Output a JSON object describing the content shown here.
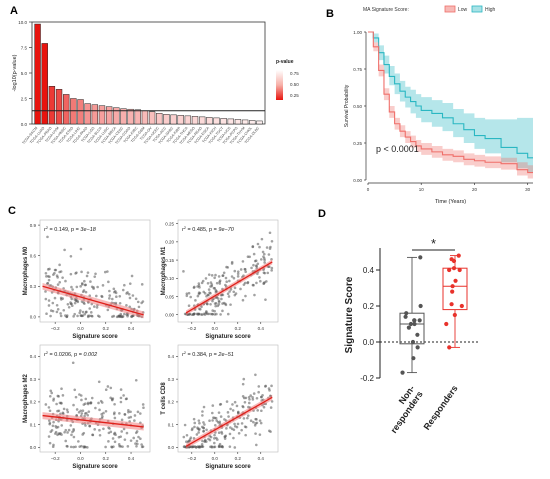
{
  "panels": {
    "A": "A",
    "B": "B",
    "C": "C",
    "D": "D"
  },
  "chart_data": [
    {
      "id": "A",
      "type": "bar",
      "ylabel": "-log10(p-value)",
      "ylim": [
        0,
        10
      ],
      "yticks": [
        0.0,
        2.5,
        5.0,
        7.5,
        10.0
      ],
      "ytick_labels": [
        "0.0",
        "2.5",
        "5.0",
        "7.5",
        "10.0"
      ],
      "threshold": 1.3,
      "categories": [
        "TCGA-SKCM",
        "TCGA-LUAD",
        "TCGA-PRAD",
        "TCGA-UVM",
        "TCGA-HNSC",
        "TCGA-STAD",
        "TCGA-LIHC",
        "TCGA-PAAD",
        "TCGA-LGG",
        "TCGA-BLCA",
        "TCGA-LUSC",
        "TCGA-BRCA",
        "TCGA-CESC",
        "TCGA-COAD",
        "TCGA-KIRC",
        "TCGA-GBM",
        "TCGA-OV",
        "TCGA-UCEC",
        "TCGA-ACC",
        "TCGA-SARC",
        "TCGA-KIRP",
        "TCGA-THCA",
        "TCGA-MESO",
        "TCGA-READ",
        "TCGA-ESCA",
        "TCGA-KICH",
        "TCGA-TGCT",
        "TCGA-UCS",
        "TCGA-PCPG",
        "TCGA-THYM",
        "TCGA-CHOL",
        "TCGA-DLBC"
      ],
      "values": [
        9.8,
        7.9,
        3.7,
        3.4,
        2.9,
        2.5,
        2.4,
        2.0,
        1.9,
        1.8,
        1.7,
        1.6,
        1.5,
        1.45,
        1.4,
        1.3,
        1.2,
        1.05,
        0.95,
        0.9,
        0.85,
        0.8,
        0.75,
        0.7,
        0.65,
        0.6,
        0.55,
        0.5,
        0.45,
        0.4,
        0.35,
        0.3
      ],
      "legend": {
        "title": "p-value",
        "labels": [
          "0.75",
          "0.50",
          "0.25"
        ],
        "colors": [
          "#ffffff",
          "#f7b0a8",
          "#e8140e"
        ]
      }
    },
    {
      "id": "B",
      "type": "line",
      "legend_title": "MA Signature Score:",
      "series_names": [
        "Low",
        "High"
      ],
      "colors": {
        "Low": "#ef6f6a",
        "High": "#2ab7c2"
      },
      "xlabel": "Time (Years)",
      "ylabel": "Survival Probability",
      "xlim": [
        0,
        31
      ],
      "ylim": [
        0,
        1
      ],
      "xticks": [
        0,
        10,
        20,
        30
      ],
      "xtick_labels": [
        "0",
        "10",
        "20",
        "30"
      ],
      "yticks": [
        0,
        0.25,
        0.5,
        0.75,
        1
      ],
      "ytick_labels": [
        "0.00",
        "0.25",
        "0.50",
        "0.75",
        "1.00"
      ],
      "annotation": "p < 0.0001",
      "series": [
        {
          "key": "High",
          "x": [
            0,
            1,
            2,
            3,
            4,
            5,
            6,
            7,
            8,
            9,
            10,
            12,
            14,
            16,
            18,
            20,
            22,
            25,
            28,
            30
          ],
          "y": [
            1,
            0.96,
            0.86,
            0.78,
            0.7,
            0.65,
            0.6,
            0.56,
            0.53,
            0.5,
            0.47,
            0.45,
            0.42,
            0.38,
            0.34,
            0.3,
            0.28,
            0.22,
            0.18,
            0.15
          ],
          "lo": [
            1,
            0.93,
            0.81,
            0.72,
            0.64,
            0.58,
            0.53,
            0.49,
            0.45,
            0.42,
            0.39,
            0.36,
            0.33,
            0.29,
            0.25,
            0.21,
            0.18,
            0.12,
            0.08,
            0.05
          ],
          "hi": [
            1,
            0.99,
            0.91,
            0.84,
            0.77,
            0.72,
            0.67,
            0.63,
            0.61,
            0.58,
            0.56,
            0.54,
            0.52,
            0.48,
            0.45,
            0.42,
            0.41,
            0.41,
            0.42,
            0.42
          ]
        },
        {
          "key": "Low",
          "x": [
            0,
            1,
            2,
            3,
            4,
            5,
            6,
            7,
            8,
            9,
            10,
            12,
            14,
            16,
            18,
            20,
            22,
            25,
            28,
            30
          ],
          "y": [
            1,
            0.9,
            0.74,
            0.58,
            0.46,
            0.38,
            0.33,
            0.29,
            0.26,
            0.23,
            0.21,
            0.19,
            0.17,
            0.16,
            0.14,
            0.13,
            0.12,
            0.11,
            0.07,
            0.05
          ],
          "lo": [
            1,
            0.87,
            0.7,
            0.54,
            0.42,
            0.34,
            0.29,
            0.25,
            0.22,
            0.19,
            0.17,
            0.15,
            0.13,
            0.12,
            0.1,
            0.09,
            0.08,
            0.07,
            0.03,
            0.01
          ],
          "hi": [
            1,
            0.93,
            0.78,
            0.62,
            0.5,
            0.42,
            0.37,
            0.33,
            0.3,
            0.27,
            0.25,
            0.23,
            0.21,
            0.2,
            0.18,
            0.17,
            0.16,
            0.15,
            0.12,
            0.1
          ]
        }
      ]
    },
    {
      "id": "C",
      "type": "scatter",
      "subplots": [
        {
          "ylabel": "Macrophages M0",
          "xlabel": "Signature score",
          "stat_r2": "0.149",
          "stat_p": "3e−18",
          "xlim": [
            -0.32,
            0.55
          ],
          "ylim": [
            -0.05,
            0.95
          ],
          "yticks": [
            0.0,
            0.3,
            0.6,
            0.9
          ],
          "ytick_labels": [
            "0.0",
            "0.3",
            "0.6",
            "0.9"
          ],
          "xticks": [
            -0.2,
            0.0,
            0.2,
            0.4
          ],
          "xtick_labels": [
            "−0.2",
            "0.0",
            "0.2",
            "0.4"
          ],
          "fit": [
            [
              -0.3,
              0.3
            ],
            [
              0.5,
              0.02
            ]
          ],
          "spread": 0.17,
          "yfloor": 0
        },
        {
          "ylabel": "Macrophages M1",
          "xlabel": "Signature score",
          "stat_r2": "0.485",
          "stat_p": "9e−70",
          "xlim": [
            -0.32,
            0.55
          ],
          "ylim": [
            -0.02,
            0.26
          ],
          "yticks": [
            0.0,
            0.05,
            0.1,
            0.15,
            0.2,
            0.25
          ],
          "ytick_labels": [
            "0.00",
            "0.05",
            "0.10",
            "0.15",
            "0.20",
            "0.25"
          ],
          "xticks": [
            -0.2,
            0.0,
            0.2,
            0.4
          ],
          "xtick_labels": [
            "−0.2",
            "0.0",
            "0.2",
            "0.4"
          ],
          "fit": [
            [
              -0.25,
              0.005
            ],
            [
              0.5,
              0.145
            ]
          ],
          "spread": 0.035,
          "yfloor": 0
        },
        {
          "ylabel": "Macrophages M2",
          "xlabel": "Signature score",
          "stat_r2": "0.0206",
          "stat_p": "0.002",
          "xlim": [
            -0.32,
            0.55
          ],
          "ylim": [
            -0.02,
            0.45
          ],
          "yticks": [
            0.0,
            0.1,
            0.2,
            0.3,
            0.4
          ],
          "ytick_labels": [
            "0.0",
            "0.1",
            "0.2",
            "0.3",
            "0.4"
          ],
          "xticks": [
            -0.2,
            0.0,
            0.2,
            0.4
          ],
          "xtick_labels": [
            "−0.2",
            "0.0",
            "0.2",
            "0.4"
          ],
          "fit": [
            [
              -0.3,
              0.14
            ],
            [
              0.5,
              0.09
            ]
          ],
          "spread": 0.08,
          "yfloor": 0
        },
        {
          "ylabel": "T cells CD8",
          "xlabel": "Signature score",
          "stat_r2": "0.384",
          "stat_p": "2e−51",
          "xlim": [
            -0.32,
            0.55
          ],
          "ylim": [
            -0.02,
            0.45
          ],
          "yticks": [
            0.0,
            0.1,
            0.2,
            0.3,
            0.4
          ],
          "ytick_labels": [
            "0.0",
            "0.1",
            "0.2",
            "0.3",
            "0.4"
          ],
          "xticks": [
            -0.2,
            0.0,
            0.2,
            0.4
          ],
          "xtick_labels": [
            "−0.2",
            "0.0",
            "0.2",
            "0.4"
          ],
          "fit": [
            [
              -0.25,
              0.005
            ],
            [
              0.5,
              0.22
            ]
          ],
          "spread": 0.06,
          "yfloor": 0
        }
      ]
    },
    {
      "id": "D",
      "type": "box",
      "ylabel": "Signature Score",
      "ylim": [
        -0.2,
        0.5
      ],
      "yticks": [
        -0.2,
        0.0,
        0.2,
        0.4
      ],
      "ytick_labels": [
        "-0.2",
        "0.0",
        "0.2",
        "0.4"
      ],
      "significance": "*",
      "groups": [
        {
          "name": "Non-",
          "name2": "responders",
          "color": "#555555",
          "min": -0.17,
          "q1": -0.01,
          "median": 0.1,
          "q3": 0.16,
          "max": 0.47,
          "points": [
            0.47,
            0.2,
            0.16,
            0.14,
            0.12,
            0.12,
            0.12,
            0.1,
            0.1,
            0.08,
            0.04,
            0.0,
            -0.03,
            -0.09,
            -0.17
          ]
        },
        {
          "name": "Responders",
          "name2": "",
          "color": "#e8322b",
          "min": -0.03,
          "q1": 0.18,
          "median": 0.31,
          "q3": 0.41,
          "max": 0.48,
          "points": [
            0.48,
            0.46,
            0.45,
            0.41,
            0.4,
            0.4,
            0.34,
            0.31,
            0.28,
            0.21,
            0.2,
            0.15,
            0.1,
            -0.03
          ]
        }
      ]
    }
  ]
}
